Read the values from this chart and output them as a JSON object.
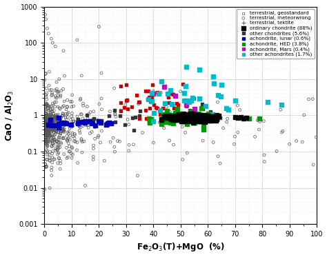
{
  "title": "",
  "xlabel": "Fe$_2$O$_3$(T)+MgO  (%)",
  "ylabel": "CaO / Al$_2$O$_3$",
  "xlim": [
    0,
    100
  ],
  "ylim": [
    0.001,
    1000
  ],
  "background_color": "#ffffff",
  "seed": 42,
  "geo_color": "#555555",
  "met_color": "#555555",
  "ord_color": "#000000",
  "other_ch_color": "#333333",
  "lunar_color": "#0000bb",
  "hed_color": "#009900",
  "mars_color": "#cc00cc",
  "ach_color": "#00bbcc",
  "red_color": "#cc0000"
}
